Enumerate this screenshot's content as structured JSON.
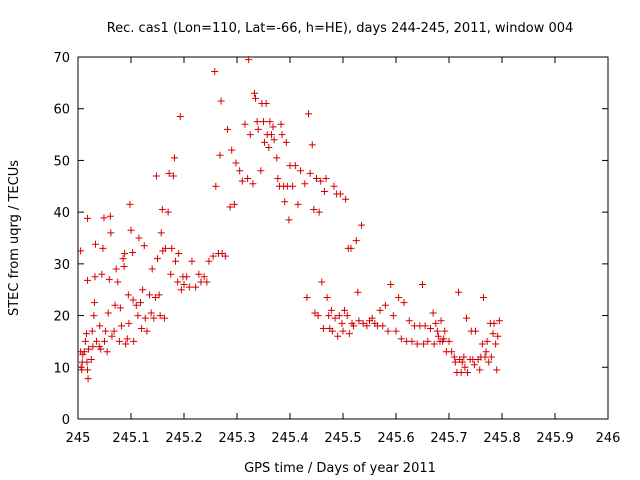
{
  "chart_data": {
    "type": "scatter",
    "title": "Rec. cas1 (Lon=110, Lat=-66, h=HE), days 244-245, 2011, window 004",
    "xlabel": "GPS time / Days of year 2011",
    "ylabel": "STEC from uqrg / TECUs",
    "xlim": [
      245,
      246
    ],
    "ylim": [
      0,
      70
    ],
    "x_ticks": [
      "245",
      "245.1",
      "245.2",
      "245.3",
      "245.4",
      "245.5",
      "245.6",
      "245.7",
      "245.8",
      "245.9",
      "246"
    ],
    "y_ticks": [
      "0",
      "10",
      "20",
      "30",
      "40",
      "50",
      "60",
      "70"
    ],
    "grid": false,
    "marker": "plus",
    "marker_color": "#d40000",
    "points": [
      [
        245.005,
        13
      ],
      [
        245.006,
        10
      ],
      [
        245.007,
        9.5
      ],
      [
        245.008,
        11
      ],
      [
        245.009,
        12.5
      ],
      [
        245.012,
        13
      ],
      [
        245.014,
        15
      ],
      [
        245.016,
        16.5
      ],
      [
        245.017,
        11
      ],
      [
        245.018,
        9.5
      ],
      [
        245.019,
        7.8
      ],
      [
        245.02,
        13.5
      ],
      [
        245.005,
        32.5
      ],
      [
        245.018,
        38.8
      ],
      [
        245.018,
        26.8
      ],
      [
        245.025,
        11.5
      ],
      [
        245.027,
        17
      ],
      [
        245.028,
        14
      ],
      [
        245.03,
        20
      ],
      [
        245.031,
        22.5
      ],
      [
        245.032,
        27.5
      ],
      [
        245.033,
        33.8
      ],
      [
        245.035,
        15
      ],
      [
        245.04,
        14
      ],
      [
        245.041,
        18
      ],
      [
        245.043,
        13.5
      ],
      [
        245.045,
        28
      ],
      [
        245.047,
        33
      ],
      [
        245.049,
        38.9
      ],
      [
        245.05,
        15
      ],
      [
        245.052,
        17
      ],
      [
        245.055,
        13
      ],
      [
        245.057,
        20.5
      ],
      [
        245.059,
        27
      ],
      [
        245.061,
        39.2
      ],
      [
        245.062,
        36
      ],
      [
        245.064,
        16
      ],
      [
        245.068,
        17
      ],
      [
        245.07,
        22
      ],
      [
        245.072,
        29
      ],
      [
        245.075,
        26.5
      ],
      [
        245.078,
        15
      ],
      [
        245.08,
        21.5
      ],
      [
        245.082,
        18
      ],
      [
        245.085,
        31
      ],
      [
        245.087,
        29.5
      ],
      [
        245.088,
        32
      ],
      [
        245.09,
        14.5
      ],
      [
        245.093,
        15.5
      ],
      [
        245.095,
        24
      ],
      [
        245.096,
        18.5
      ],
      [
        245.098,
        41.5
      ],
      [
        245.1,
        36.5
      ],
      [
        245.103,
        32.2
      ],
      [
        245.104,
        23
      ],
      [
        245.105,
        15
      ],
      [
        245.11,
        22
      ],
      [
        245.113,
        20
      ],
      [
        245.115,
        35
      ],
      [
        245.118,
        22.5
      ],
      [
        245.12,
        17.5
      ],
      [
        245.122,
        25
      ],
      [
        245.125,
        33.5
      ],
      [
        245.127,
        19.5
      ],
      [
        245.13,
        17
      ],
      [
        245.135,
        24
      ],
      [
        245.138,
        20.5
      ],
      [
        245.14,
        29
      ],
      [
        245.143,
        19.5
      ],
      [
        245.146,
        23.5
      ],
      [
        245.148,
        47
      ],
      [
        245.15,
        31
      ],
      [
        245.153,
        24
      ],
      [
        245.155,
        20
      ],
      [
        245.157,
        36
      ],
      [
        245.159,
        40.5
      ],
      [
        245.16,
        32.5
      ],
      [
        245.163,
        19.5
      ],
      [
        245.165,
        33
      ],
      [
        245.17,
        40
      ],
      [
        245.172,
        47.5
      ],
      [
        245.175,
        28
      ],
      [
        245.177,
        33
      ],
      [
        245.18,
        47
      ],
      [
        245.182,
        50.5
      ],
      [
        245.184,
        30.5
      ],
      [
        245.188,
        26.5
      ],
      [
        245.19,
        32
      ],
      [
        245.193,
        58.5
      ],
      [
        245.195,
        25
      ],
      [
        245.198,
        27.5
      ],
      [
        245.2,
        26
      ],
      [
        245.205,
        27.5
      ],
      [
        245.21,
        25.5
      ],
      [
        245.215,
        30.5
      ],
      [
        245.222,
        25.5
      ],
      [
        245.228,
        28
      ],
      [
        245.232,
        26.5
      ],
      [
        245.238,
        27.5
      ],
      [
        245.243,
        26.5
      ],
      [
        245.247,
        30.5
      ],
      [
        245.255,
        31.5
      ],
      [
        245.258,
        67.2
      ],
      [
        245.26,
        45
      ],
      [
        245.265,
        32
      ],
      [
        245.268,
        51
      ],
      [
        245.27,
        61.5
      ],
      [
        245.272,
        32
      ],
      [
        245.278,
        31.5
      ],
      [
        245.282,
        56
      ],
      [
        245.287,
        41
      ],
      [
        245.29,
        52
      ],
      [
        245.295,
        41.5
      ],
      [
        245.298,
        49.5
      ],
      [
        245.305,
        48
      ],
      [
        245.31,
        46
      ],
      [
        245.315,
        57
      ],
      [
        245.32,
        46.5
      ],
      [
        245.322,
        69.5
      ],
      [
        245.325,
        55
      ],
      [
        245.33,
        45.5
      ],
      [
        245.333,
        63
      ],
      [
        245.335,
        62
      ],
      [
        245.338,
        57.5
      ],
      [
        245.34,
        56
      ],
      [
        245.345,
        48
      ],
      [
        245.347,
        61
      ],
      [
        245.35,
        57.5
      ],
      [
        245.352,
        53.5
      ],
      [
        245.355,
        61
      ],
      [
        245.357,
        55
      ],
      [
        245.36,
        52.5
      ],
      [
        245.362,
        57.5
      ],
      [
        245.365,
        55
      ],
      [
        245.368,
        56.5
      ],
      [
        245.37,
        54
      ],
      [
        245.375,
        50.5
      ],
      [
        245.377,
        46.5
      ],
      [
        245.38,
        45
      ],
      [
        245.383,
        57
      ],
      [
        245.385,
        55
      ],
      [
        245.388,
        45
      ],
      [
        245.39,
        42
      ],
      [
        245.393,
        53.5
      ],
      [
        245.395,
        45
      ],
      [
        245.398,
        38.5
      ],
      [
        245.4,
        49
      ],
      [
        245.405,
        45
      ],
      [
        245.41,
        49
      ],
      [
        245.415,
        41.5
      ],
      [
        245.42,
        48
      ],
      [
        245.428,
        45.5
      ],
      [
        245.432,
        23.5
      ],
      [
        245.435,
        59
      ],
      [
        245.438,
        47.5
      ],
      [
        245.442,
        53
      ],
      [
        245.445,
        40.5
      ],
      [
        245.447,
        20.5
      ],
      [
        245.45,
        46.5
      ],
      [
        245.453,
        20
      ],
      [
        245.455,
        40
      ],
      [
        245.458,
        46
      ],
      [
        245.46,
        26.5
      ],
      [
        245.463,
        17.5
      ],
      [
        245.465,
        44
      ],
      [
        245.468,
        46.5
      ],
      [
        245.47,
        23.5
      ],
      [
        245.473,
        20
      ],
      [
        245.475,
        17.5
      ],
      [
        245.478,
        21
      ],
      [
        245.48,
        17
      ],
      [
        245.483,
        45
      ],
      [
        245.485,
        19.5
      ],
      [
        245.488,
        43.5
      ],
      [
        245.49,
        16
      ],
      [
        245.493,
        20
      ],
      [
        245.495,
        43.5
      ],
      [
        245.498,
        18.5
      ],
      [
        245.5,
        17
      ],
      [
        245.503,
        21
      ],
      [
        245.505,
        42.5
      ],
      [
        245.508,
        20
      ],
      [
        245.51,
        33
      ],
      [
        245.512,
        16.5
      ],
      [
        245.515,
        33
      ],
      [
        245.517,
        18.5
      ],
      [
        245.52,
        18
      ],
      [
        245.525,
        34.5
      ],
      [
        245.528,
        24.5
      ],
      [
        245.53,
        19
      ],
      [
        245.535,
        37.5
      ],
      [
        245.538,
        18.5
      ],
      [
        245.545,
        18
      ],
      [
        245.55,
        19
      ],
      [
        245.555,
        19.5
      ],
      [
        245.56,
        18.5
      ],
      [
        245.565,
        18
      ],
      [
        245.57,
        21
      ],
      [
        245.575,
        18
      ],
      [
        245.58,
        22
      ],
      [
        245.585,
        17
      ],
      [
        245.59,
        26
      ],
      [
        245.595,
        20
      ],
      [
        245.6,
        17
      ],
      [
        245.605,
        23.5
      ],
      [
        245.61,
        15.5
      ],
      [
        245.615,
        22.5
      ],
      [
        245.62,
        15
      ],
      [
        245.625,
        19
      ],
      [
        245.63,
        15
      ],
      [
        245.635,
        18
      ],
      [
        245.64,
        14.5
      ],
      [
        245.645,
        18
      ],
      [
        245.65,
        26
      ],
      [
        245.652,
        14.5
      ],
      [
        245.655,
        18
      ],
      [
        245.66,
        15
      ],
      [
        245.665,
        17.5
      ],
      [
        245.67,
        20.5
      ],
      [
        245.672,
        14.5
      ],
      [
        245.675,
        18.5
      ],
      [
        245.678,
        17
      ],
      [
        245.68,
        16
      ],
      [
        245.683,
        15
      ],
      [
        245.685,
        19
      ],
      [
        245.688,
        15
      ],
      [
        245.69,
        15.5
      ],
      [
        245.692,
        17
      ],
      [
        245.695,
        13
      ],
      [
        245.7,
        15
      ],
      [
        245.705,
        13
      ],
      [
        245.71,
        12
      ],
      [
        245.712,
        11
      ],
      [
        245.715,
        9
      ],
      [
        245.718,
        24.5
      ],
      [
        245.72,
        11.5
      ],
      [
        245.723,
        9
      ],
      [
        245.725,
        11
      ],
      [
        245.728,
        12
      ],
      [
        245.73,
        10
      ],
      [
        245.733,
        19.5
      ],
      [
        245.735,
        9
      ],
      [
        245.74,
        11.5
      ],
      [
        245.742,
        17
      ],
      [
        245.745,
        11.5
      ],
      [
        245.748,
        10.5
      ],
      [
        245.75,
        17
      ],
      [
        245.755,
        11.5
      ],
      [
        245.758,
        9.5
      ],
      [
        245.76,
        12
      ],
      [
        245.763,
        14.5
      ],
      [
        245.765,
        23.5
      ],
      [
        245.768,
        12
      ],
      [
        245.77,
        13
      ],
      [
        245.772,
        15
      ],
      [
        245.775,
        11
      ],
      [
        245.778,
        18.5
      ],
      [
        245.78,
        12
      ],
      [
        245.783,
        16.5
      ],
      [
        245.785,
        18.5
      ],
      [
        245.788,
        14.5
      ],
      [
        245.79,
        9.5
      ],
      [
        245.792,
        16
      ],
      [
        245.795,
        19
      ]
    ]
  }
}
